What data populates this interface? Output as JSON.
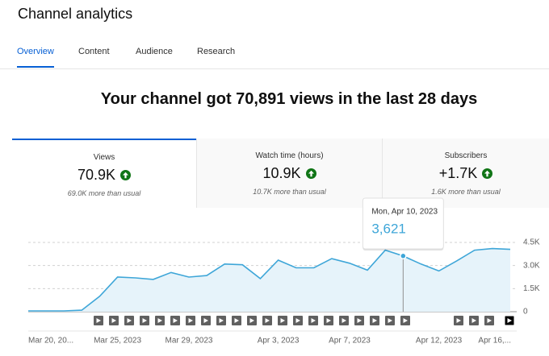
{
  "header": {
    "title": "Channel analytics"
  },
  "tabs": [
    {
      "label": "Overview",
      "selected": true
    },
    {
      "label": "Content",
      "selected": false
    },
    {
      "label": "Audience",
      "selected": false
    },
    {
      "label": "Research",
      "selected": false
    }
  ],
  "headline": "Your channel got 70,891 views in the last 28 days",
  "metrics": [
    {
      "label": "Views",
      "value": "70.9K",
      "note": "69.0K more than usual",
      "selected": true
    },
    {
      "label": "Watch time (hours)",
      "value": "10.9K",
      "note": "10.7K more than usual",
      "selected": false
    },
    {
      "label": "Subscribers",
      "value": "+1.7K",
      "note": "1.6K more than usual",
      "selected": false
    }
  ],
  "chart_data": {
    "type": "area",
    "categories": [
      "Mar 20, 20...",
      null,
      null,
      null,
      null,
      "Mar 25, 2023",
      null,
      null,
      null,
      "Mar 29, 2023",
      null,
      null,
      null,
      null,
      "Apr 3, 2023",
      null,
      null,
      null,
      "Apr 7, 2023",
      null,
      null,
      null,
      null,
      "Apr 12, 2023",
      null,
      null,
      null,
      "Apr 16,..."
    ],
    "values": [
      50,
      50,
      50,
      100,
      1000,
      2250,
      2200,
      2100,
      2550,
      2250,
      2350,
      3100,
      3050,
      2150,
      3350,
      2850,
      2850,
      3450,
      3150,
      2700,
      4000,
      3621,
      3100,
      2650,
      3300,
      4000,
      4100,
      4050
    ],
    "value_labels": [
      null,
      null,
      null,
      null,
      null,
      null,
      null,
      null,
      null,
      null,
      null,
      null,
      null,
      null,
      null,
      null,
      null,
      null,
      null,
      null,
      null,
      "3,621",
      null,
      null,
      null,
      null,
      null,
      null
    ],
    "tooltip_title": "Mon, Apr 10, 2023",
    "color": "#3ea6d8",
    "ylim": [
      0,
      4500
    ],
    "yticks": [
      0,
      {
        "value": 1500,
        "label": "1.5K"
      },
      {
        "value": 3000,
        "label": "3.0K"
      },
      {
        "value": 4500,
        "label": "4.5K"
      }
    ],
    "grid": true
  }
}
